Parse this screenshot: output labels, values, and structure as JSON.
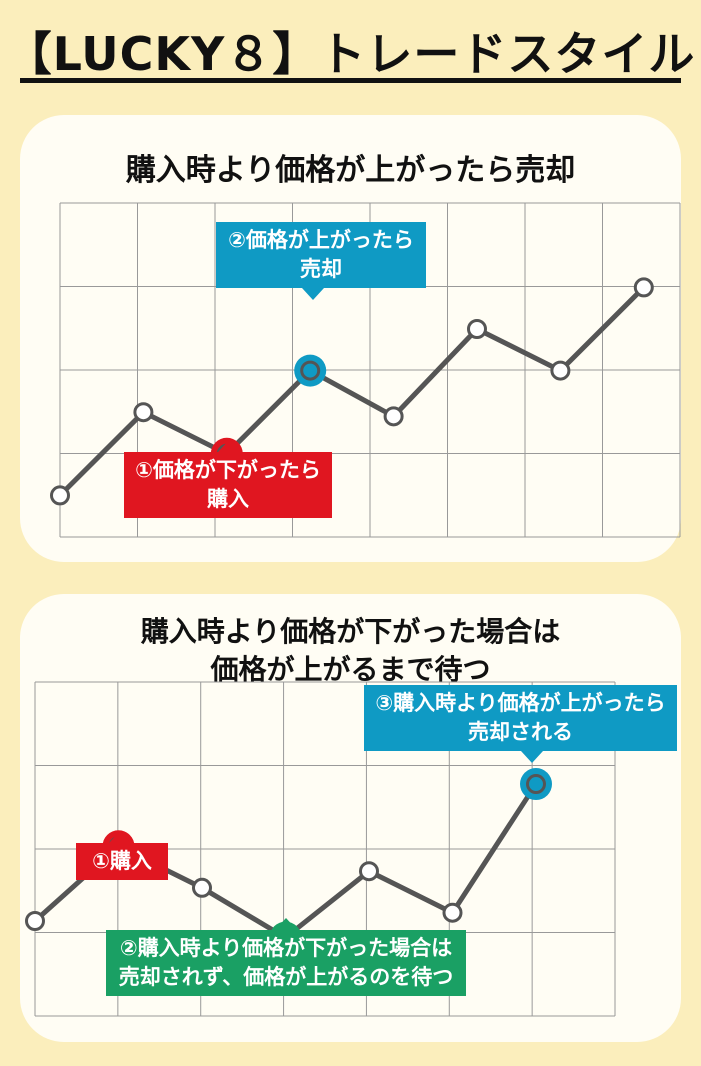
{
  "title": "【LUCKY８】トレードスタイル",
  "panel1": {
    "title": "購入時より価格が上がったら売却",
    "callout_sell_line1": "②価格が上がったら",
    "callout_sell_line2": "売却",
    "callout_buy_line1": "①価格が下がったら",
    "callout_buy_line2": "購入"
  },
  "panel2": {
    "title_line1": "購入時より価格が下がった場合は",
    "title_line2": "価格が上がるまで待つ",
    "callout_buy": "①購入",
    "callout_sold_line1": "③購入時より価格が上がったら",
    "callout_sold_line2": "売却される",
    "callout_wait_line1": "②購入時より価格が下がった場合は",
    "callout_wait_line2": "売却されず、価格が上がるのを待つ"
  },
  "colors": {
    "background": "#fbeebc",
    "panel": "#fffdf4",
    "grid": "#999999",
    "line": "#555555",
    "buy": "#e01620",
    "sell": "#0f9ac4",
    "wait": "#1aa064"
  },
  "chart_data": [
    {
      "type": "line",
      "x": [
        0,
        1,
        2,
        3,
        4,
        5,
        6,
        7
      ],
      "series": [
        {
          "values": [
            2.0,
            4.0,
            3.0,
            5.0,
            3.9,
            6.0,
            5.0,
            7.0
          ]
        }
      ],
      "highlights": [
        {
          "index": 2,
          "role": "buy"
        },
        {
          "index": 3,
          "role": "sell"
        }
      ],
      "grid": true
    },
    {
      "type": "line",
      "x": [
        0,
        1,
        2,
        3,
        4,
        5,
        6
      ],
      "series": [
        {
          "values": [
            3.0,
            4.8,
            3.8,
            2.6,
            4.2,
            3.2,
            6.3
          ]
        }
      ],
      "highlights": [
        {
          "index": 1,
          "role": "buy"
        },
        {
          "index": 3,
          "role": "wait"
        },
        {
          "index": 6,
          "role": "sell"
        }
      ],
      "grid": true
    }
  ]
}
